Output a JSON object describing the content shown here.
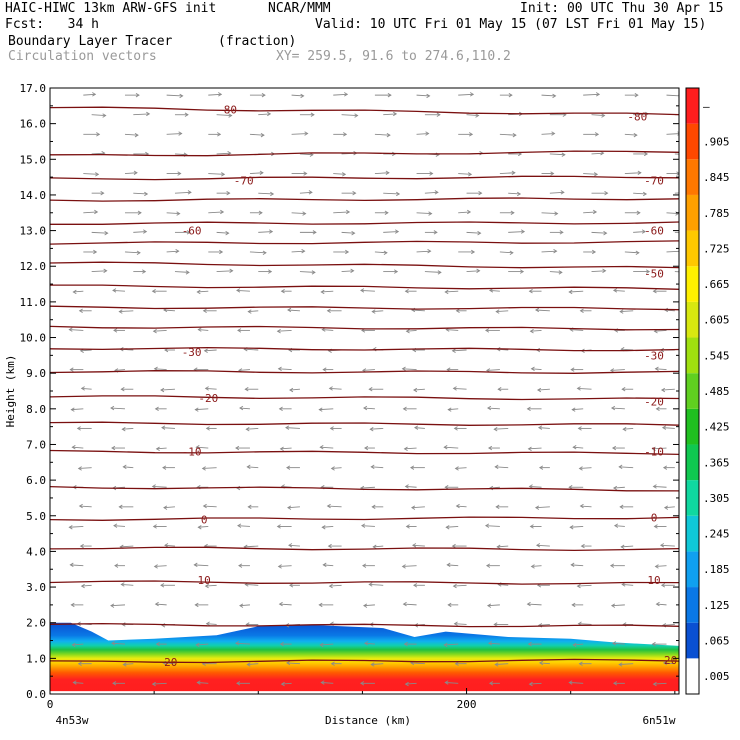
{
  "header": {
    "title_left": "HAIC-HIWC 13km ARW-GFS init",
    "org": "NCAR/MMM",
    "init": "Init: 00 UTC Thu 30 Apr 15",
    "fcst": "Fcst:   34 h",
    "valid": "Valid: 10 UTC Fri 01 May 15 (07 LST Fri 01 May 15)",
    "field": "Boundary Layer Tracer",
    "field_units": "(fraction)",
    "vectors": "Circulation vectors",
    "xy": "XY= 259.5, 91.6 to 274.6,110.2"
  },
  "chart_data": {
    "type": "heatmap",
    "xlabel": "Distance (km)",
    "ylabel": "Height (km)",
    "x_ticks": [
      "0",
      "200"
    ],
    "x_end_labels": [
      "4n53w",
      "6n51w"
    ],
    "xlim": [
      0,
      302
    ],
    "ylim": [
      0,
      17
    ],
    "y_ticks": [
      "0.0",
      "1.0",
      "2.0",
      "3.0",
      "4.0",
      "5.0",
      "6.0",
      "7.0",
      "8.0",
      "9.0",
      "10.0",
      "11.0",
      "12.0",
      "13.0",
      "14.0",
      "15.0",
      "16.0",
      "17.0"
    ],
    "colorbar_labels": [
      ".005",
      ".065",
      ".125",
      ".185",
      ".245",
      ".305",
      ".365",
      ".425",
      ".485",
      ".545",
      ".605",
      ".665",
      ".725",
      ".785",
      ".845",
      ".905",
      "–"
    ],
    "colorbar_colors": [
      "#ffffff",
      "#0a50d2",
      "#0a78e6",
      "#10a0f0",
      "#10c8d8",
      "#10d8a0",
      "#10c850",
      "#20c020",
      "#60d020",
      "#a0e010",
      "#d8e810",
      "#fff000",
      "#ffc800",
      "#ffa000",
      "#ff7800",
      "#ff4800",
      "#ff1e1e"
    ],
    "contour_color": "#7a1010",
    "temperature_labels": [
      {
        "text": "-80",
        "x": 85,
        "y": 16.4
      },
      {
        "text": "-80",
        "x": 282,
        "y": 16.2
      },
      {
        "text": "-70",
        "x": 93,
        "y": 14.4
      },
      {
        "text": "-70",
        "x": 290,
        "y": 14.4
      },
      {
        "text": "-60",
        "x": 68,
        "y": 13.0
      },
      {
        "text": "-60",
        "x": 290,
        "y": 13.0
      },
      {
        "text": "-50",
        "x": 290,
        "y": 11.8
      },
      {
        "text": "-30",
        "x": 68,
        "y": 9.6
      },
      {
        "text": "-30",
        "x": 290,
        "y": 9.5
      },
      {
        "text": "-20",
        "x": 76,
        "y": 8.3
      },
      {
        "text": "-20",
        "x": 290,
        "y": 8.2
      },
      {
        "text": "-10",
        "x": 68,
        "y": 6.8
      },
      {
        "text": "-10",
        "x": 290,
        "y": 6.8
      },
      {
        "text": "0",
        "x": 74,
        "y": 4.9
      },
      {
        "text": "0",
        "x": 290,
        "y": 4.95
      },
      {
        "text": "10",
        "x": 74,
        "y": 3.2
      },
      {
        "text": "10",
        "x": 290,
        "y": 3.2
      },
      {
        "text": "20",
        "x": 58,
        "y": 0.9
      },
      {
        "text": "20",
        "x": 298,
        "y": 0.95
      }
    ],
    "contour_levels_y": [
      16.45,
      15.1,
      14.45,
      13.85,
      13.2,
      12.65,
      12.1,
      11.45,
      10.85,
      10.3,
      9.7,
      9.05,
      8.35,
      7.6,
      6.8,
      5.8,
      4.9,
      4.1,
      3.15,
      1.95,
      0.9
    ],
    "contour_slope": [
      -0.2,
      0.12,
      0.06,
      0.05,
      0.02,
      0.03,
      -0.15,
      -0.08,
      -0.04,
      -0.06,
      -0.05,
      -0.03,
      -0.08,
      -0.05,
      -0.05,
      -0.08,
      0.05,
      -0.05,
      -0.05,
      -0.05,
      0.05
    ],
    "bl_top_profile": {
      "x": [
        0,
        10,
        20,
        28,
        50,
        80,
        100,
        120,
        140,
        160,
        175,
        190,
        220,
        250,
        270,
        302
      ],
      "y": [
        2.0,
        2.0,
        1.75,
        1.5,
        1.55,
        1.65,
        1.9,
        1.95,
        1.9,
        1.85,
        1.6,
        1.75,
        1.6,
        1.55,
        1.45,
        1.35
      ]
    }
  }
}
